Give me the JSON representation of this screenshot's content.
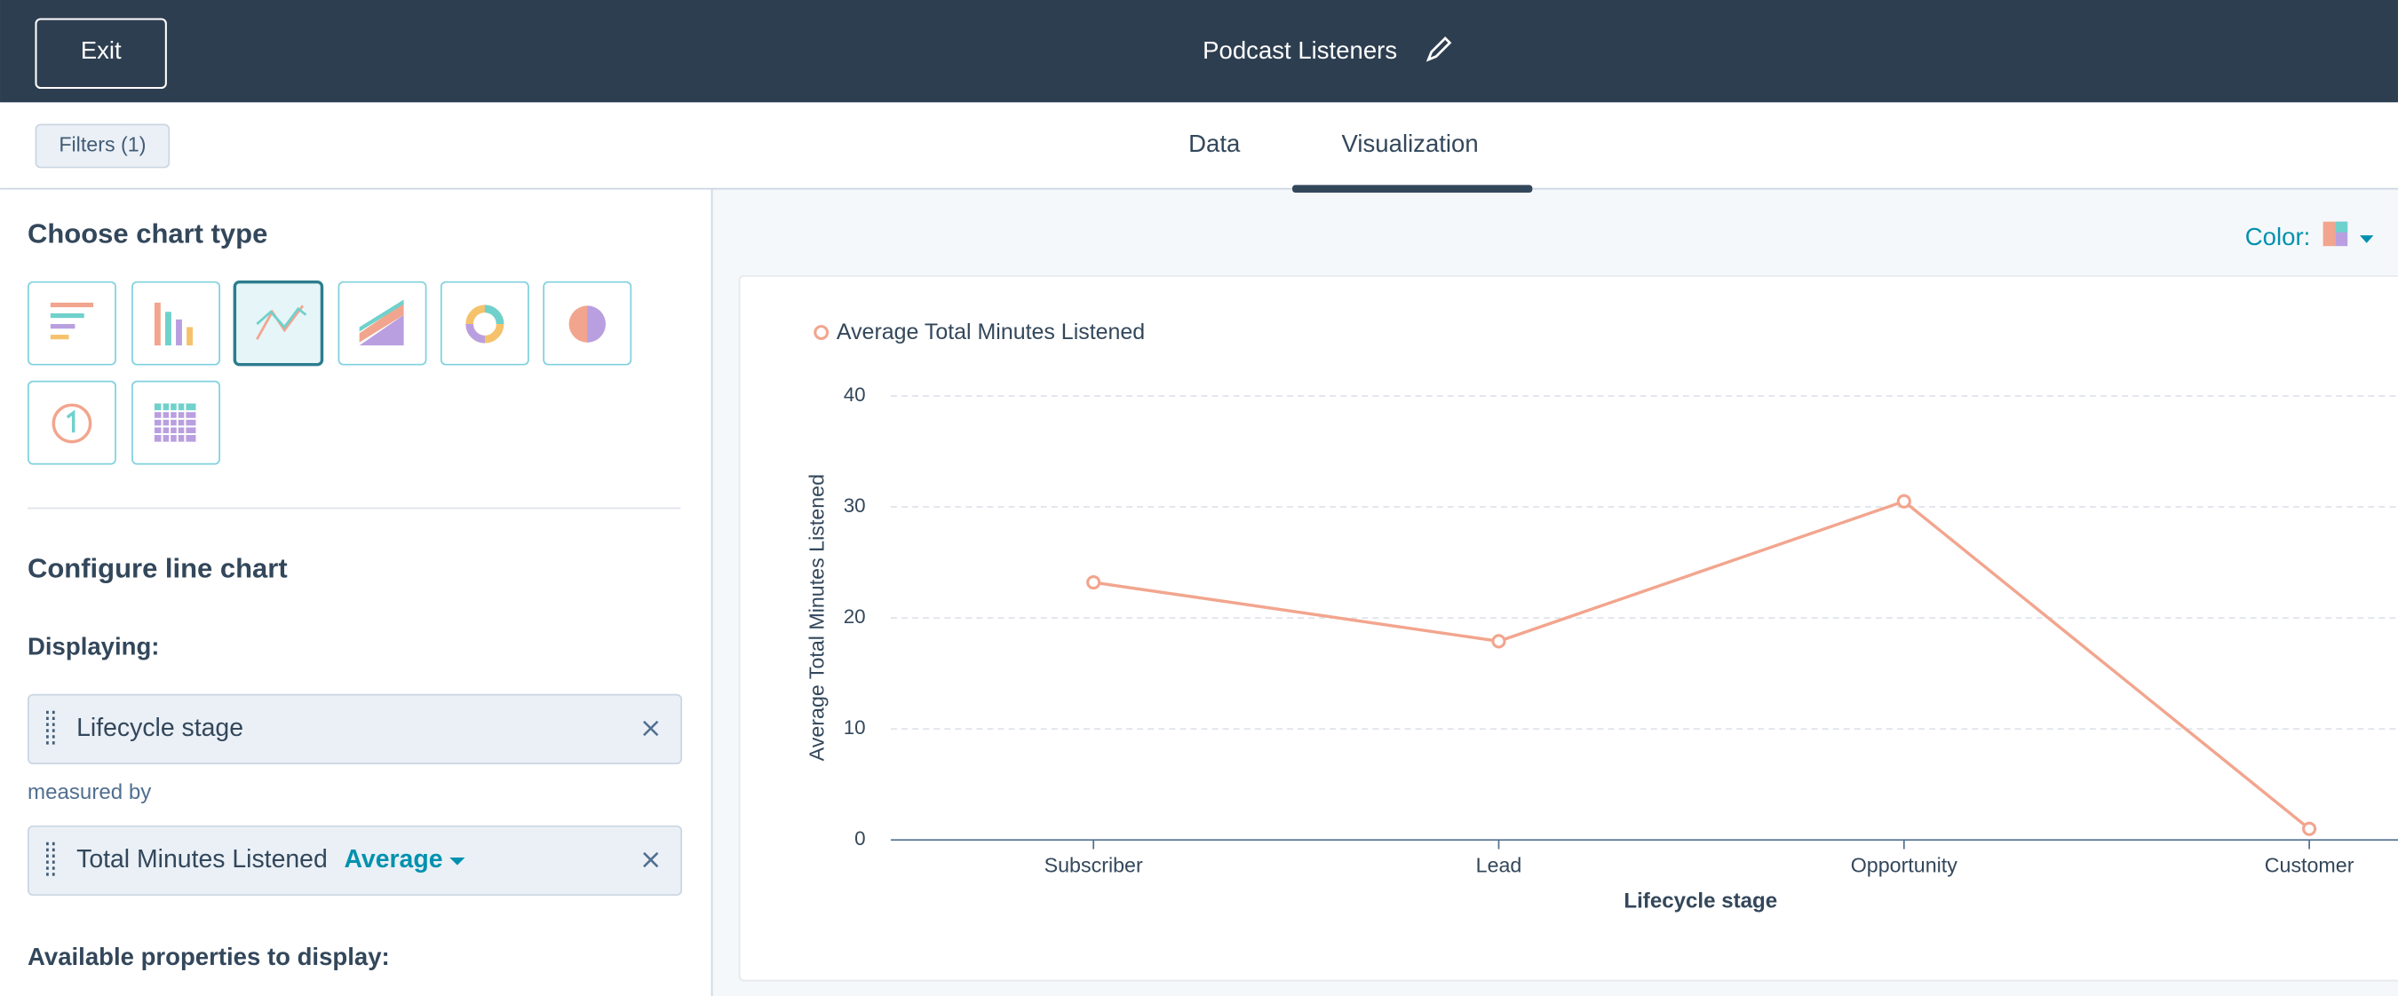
{
  "header": {
    "exit": "Exit",
    "title": "Podcast Listeners"
  },
  "toolbar": {
    "filters": "Filters (1)",
    "tabs": [
      "Data",
      "Visualization"
    ]
  },
  "sidebar": {
    "choose_heading": "Choose chart type",
    "configure_heading": "Configure line chart",
    "displaying_label": "Displaying:",
    "dimension": "Lifecycle stage",
    "measured_by_label": "measured by",
    "measure": "Total Minutes Listened",
    "aggregation": "Average",
    "available_label": "Available properties to display:"
  },
  "color_label": "Color:",
  "chart_data": {
    "type": "line",
    "x_label": "Lifecycle stage",
    "y_label": "Average Total Minutes Listened",
    "categories": [
      "Subscriber",
      "Lead",
      "Opportunity",
      "Customer"
    ],
    "series": [
      {
        "name": "Average Total Minutes Listened",
        "color": "#f2a58e",
        "values": [
          23.2,
          17.9,
          30.5,
          1
        ]
      }
    ],
    "ylim": [
      0,
      40
    ],
    "yticks": [
      0,
      10,
      20,
      30,
      40
    ],
    "grid": true
  }
}
